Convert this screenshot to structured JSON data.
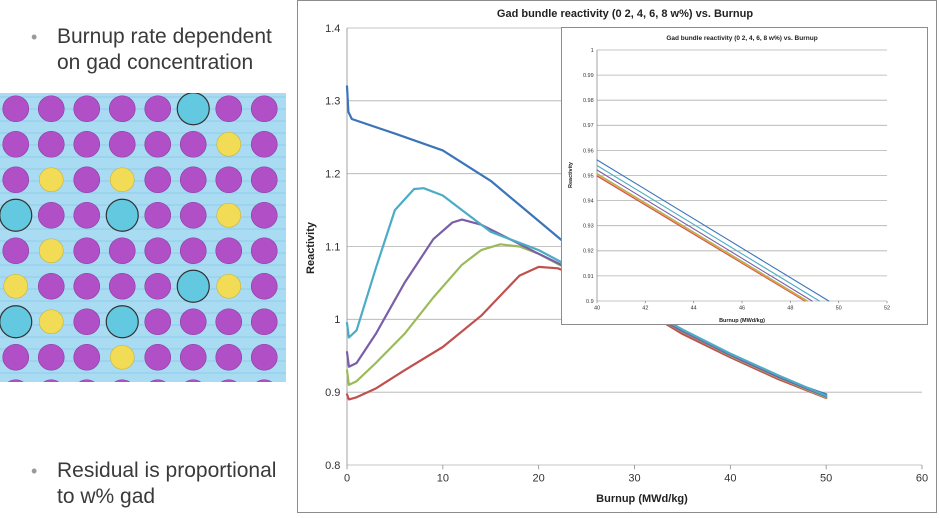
{
  "slide": {
    "bullet_1": "Burnup rate dependent on gad concentration",
    "bullet_2": "Residual is proportional to w% gad",
    "bullet_glyph": "•"
  },
  "lattice": {
    "colors": {
      "water": "#a9dcf3",
      "fuel": "#b14fc7",
      "gad": "#f2dc55",
      "water_rod": "#62c9e0"
    },
    "grid": [
      "PPPPPWPP",
      "PPPPPPGP",
      "PGPGPPPP",
      "WPPWPPGP",
      "PGPPPPPP",
      "GPPPPWGP",
      "WGPWPPPP",
      "PPPGPPPP",
      "PPPPPPPP"
    ],
    "legend": {
      "P": "fuel-pin",
      "G": "gad-pin",
      "W": "water-rod"
    }
  },
  "chart_data": [
    {
      "type": "line",
      "title": "Gad bundle reactivity (0 2, 4, 6, 8 w%) vs. Burnup",
      "xlabel": "Burnup (MWd/kg)",
      "ylabel": "Reactivity",
      "xlim": [
        0,
        60
      ],
      "ylim": [
        0.8,
        1.4
      ],
      "xticks": [
        "0",
        "10",
        "20",
        "30",
        "40",
        "50",
        "60"
      ],
      "yticks": [
        "0.8",
        "0.9",
        "1",
        "1.1",
        "1.2",
        "1.3",
        "1.4"
      ],
      "grid": "horizontal",
      "legend": "none",
      "series": [
        {
          "color": "#3b75b9",
          "points": [
            [
              0,
              1.32
            ],
            [
              0.15,
              1.285
            ],
            [
              0.5,
              1.275
            ],
            [
              5,
              1.255
            ],
            [
              10,
              1.232
            ],
            [
              15,
              1.19
            ],
            [
              20,
              1.135
            ],
            [
              25,
              1.08
            ],
            [
              30,
              1.03
            ],
            [
              35,
              0.985
            ],
            [
              40,
              0.952
            ],
            [
              45,
              0.92
            ],
            [
              50,
              0.897
            ]
          ]
        },
        {
          "color": "#c0504d",
          "points": [
            [
              0,
              0.897
            ],
            [
              0.2,
              0.89
            ],
            [
              1,
              0.893
            ],
            [
              3,
              0.905
            ],
            [
              6,
              0.93
            ],
            [
              10,
              0.962
            ],
            [
              14,
              1.005
            ],
            [
              18,
              1.06
            ],
            [
              20,
              1.072
            ],
            [
              22,
              1.07
            ],
            [
              25,
              1.055
            ],
            [
              30,
              1.02
            ],
            [
              35,
              0.98
            ],
            [
              40,
              0.948
            ],
            [
              45,
              0.918
            ],
            [
              50,
              0.892
            ]
          ]
        },
        {
          "color": "#9bbb59",
          "points": [
            [
              0,
              0.93
            ],
            [
              0.2,
              0.91
            ],
            [
              1,
              0.915
            ],
            [
              3,
              0.94
            ],
            [
              6,
              0.98
            ],
            [
              9,
              1.03
            ],
            [
              12,
              1.075
            ],
            [
              14,
              1.095
            ],
            [
              16,
              1.103
            ],
            [
              18,
              1.1
            ],
            [
              20,
              1.09
            ],
            [
              25,
              1.055
            ],
            [
              30,
              1.02
            ],
            [
              35,
              0.983
            ],
            [
              40,
              0.95
            ],
            [
              45,
              0.92
            ],
            [
              50,
              0.893
            ]
          ]
        },
        {
          "color": "#7b5ea7",
          "points": [
            [
              0,
              0.955
            ],
            [
              0.2,
              0.935
            ],
            [
              1,
              0.94
            ],
            [
              3,
              0.98
            ],
            [
              6,
              1.05
            ],
            [
              9,
              1.11
            ],
            [
              11,
              1.133
            ],
            [
              12,
              1.137
            ],
            [
              14,
              1.13
            ],
            [
              17,
              1.11
            ],
            [
              20,
              1.09
            ],
            [
              25,
              1.058
            ],
            [
              30,
              1.02
            ],
            [
              35,
              0.984
            ],
            [
              40,
              0.951
            ],
            [
              45,
              0.921
            ],
            [
              50,
              0.894
            ]
          ]
        },
        {
          "color": "#4bacc6",
          "points": [
            [
              0,
              0.995
            ],
            [
              0.2,
              0.975
            ],
            [
              1,
              0.985
            ],
            [
              3,
              1.07
            ],
            [
              5,
              1.15
            ],
            [
              7,
              1.179
            ],
            [
              8,
              1.18
            ],
            [
              10,
              1.17
            ],
            [
              12,
              1.15
            ],
            [
              15,
              1.12
            ],
            [
              20,
              1.095
            ],
            [
              25,
              1.06
            ],
            [
              30,
              1.022
            ],
            [
              35,
              0.986
            ],
            [
              40,
              0.953
            ],
            [
              45,
              0.923
            ],
            [
              50,
              0.895
            ]
          ]
        }
      ]
    },
    {
      "type": "line",
      "title": "Gad bundle reactivity (0 2, 4, 6, 8 w%) vs. Burnup",
      "xlabel": "Burnup (MWd/kg)",
      "ylabel": "Reactivity",
      "xlim": [
        40,
        52
      ],
      "ylim": [
        0.9,
        1.0
      ],
      "xticks": [
        "40",
        "42",
        "44",
        "46",
        "48",
        "50",
        "52"
      ],
      "yticks": [
        "0.9",
        "0.91",
        "0.92",
        "0.93",
        "0.94",
        "0.95",
        "0.96",
        "0.97",
        "0.98",
        "0.99",
        "1"
      ],
      "grid": "horizontal",
      "legend": "none",
      "series": [
        {
          "color": "#3b75b9",
          "points": [
            [
              40,
              0.9562
            ],
            [
              49.59,
              0.9
            ]
          ]
        },
        {
          "color": "#4bacc6",
          "points": [
            [
              40,
              0.954
            ],
            [
              49.2,
              0.9
            ]
          ]
        },
        {
          "color": "#7b5ea7",
          "points": [
            [
              40,
              0.9522
            ],
            [
              48.9,
              0.9
            ]
          ]
        },
        {
          "color": "#9bbb59",
          "points": [
            [
              40,
              0.9508
            ],
            [
              48.72,
              0.9
            ]
          ]
        },
        {
          "color": "#c0504d",
          "points": [
            [
              40,
              0.9498
            ],
            [
              48.6,
              0.9
            ]
          ]
        },
        {
          "color": "#f79646",
          "points": [
            [
              40,
              0.9503
            ],
            [
              48.65,
              0.9
            ]
          ]
        }
      ]
    }
  ]
}
